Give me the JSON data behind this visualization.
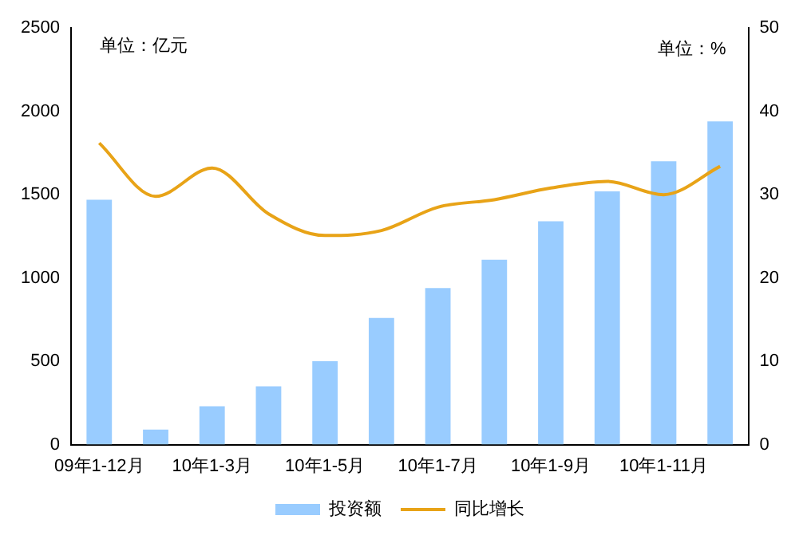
{
  "chart_data": {
    "type": "bar",
    "categories": [
      "09年1-12月",
      null,
      "10年1-3月",
      null,
      "10年1-5月",
      null,
      "10年1-7月",
      null,
      "10年1-9月",
      null,
      "10年1-11月",
      null
    ],
    "series": [
      {
        "name": "投资额",
        "color": "#99ccff",
        "values": [
          1470,
          90,
          230,
          350,
          500,
          760,
          940,
          1110,
          1340,
          1520,
          1700,
          1940
        ]
      },
      {
        "name": "同比增长",
        "type": "line",
        "axis": "y2",
        "color": "#e8a317",
        "values": [
          36.2,
          29.8,
          33.2,
          27.7,
          25.1,
          25.7,
          28.5,
          29.4,
          30.8,
          31.6,
          30.0,
          33.4
        ]
      }
    ],
    "ylim": [
      0,
      2500
    ],
    "yticks": [
      0,
      500,
      1000,
      1500,
      2000,
      2500
    ],
    "y2lim": [
      0,
      50
    ],
    "y2ticks": [
      0,
      10,
      20,
      30,
      40,
      50
    ],
    "annotations": [
      "单位：亿元",
      "单位：%"
    ],
    "grid": false,
    "legend": "bottom",
    "marker": "none"
  }
}
